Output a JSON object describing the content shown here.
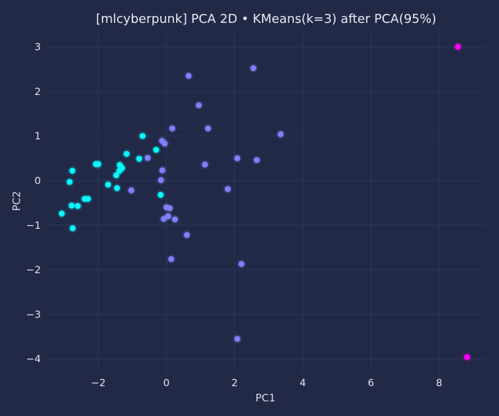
{
  "chart_data": {
    "type": "scatter",
    "title": "[mlcyberpunk] PCA 2D • KMeans(k=3) after PCA(95%)",
    "xlabel": "PC1",
    "ylabel": "PC2",
    "xlim": [
      -3.5,
      9.35
    ],
    "ylim": [
      -4.3,
      3.35
    ],
    "xticks": [
      -2,
      0,
      2,
      4,
      6,
      8
    ],
    "yticks": [
      -4,
      -3,
      -2,
      -1,
      0,
      1,
      2,
      3
    ],
    "xtick_labels": [
      "−2",
      "0",
      "2",
      "4",
      "6",
      "8"
    ],
    "ytick_labels": [
      "−4",
      "−3",
      "−2",
      "−1",
      "0",
      "1",
      "2",
      "3"
    ],
    "grid": true,
    "colors": {
      "background": "#212946",
      "grid": "#2c3762"
    },
    "series": [
      {
        "color": "#08F7FE",
        "points": [
          [
            -3.07,
            -0.74
          ],
          [
            -2.84,
            -0.03
          ],
          [
            -2.76,
            0.22
          ],
          [
            -2.78,
            -0.56
          ],
          [
            -2.75,
            -1.07
          ],
          [
            -2.6,
            -0.57
          ],
          [
            -2.4,
            -0.41
          ],
          [
            -2.3,
            -0.41
          ],
          [
            -2.07,
            0.37
          ],
          [
            -2.0,
            0.37
          ],
          [
            -1.71,
            -0.09
          ],
          [
            -1.45,
            -0.17
          ],
          [
            -1.47,
            0.12
          ],
          [
            -1.38,
            0.22
          ],
          [
            -1.37,
            0.35
          ],
          [
            -1.3,
            0.28
          ],
          [
            -1.17,
            0.6
          ],
          [
            -0.8,
            0.49
          ],
          [
            -0.7,
            1.0
          ],
          [
            -0.3,
            0.69
          ],
          [
            -0.17,
            -0.32
          ]
        ]
      },
      {
        "color": "#7F80F9",
        "points": [
          [
            0.65,
            2.35
          ],
          [
            2.55,
            2.52
          ],
          [
            0.95,
            1.69
          ],
          [
            0.17,
            1.17
          ],
          [
            1.22,
            1.17
          ],
          [
            3.35,
            1.04
          ],
          [
            -0.13,
            0.89
          ],
          [
            -0.05,
            0.83
          ],
          [
            -0.55,
            0.51
          ],
          [
            2.08,
            0.5
          ],
          [
            2.65,
            0.46
          ],
          [
            1.13,
            0.36
          ],
          [
            -0.12,
            0.23
          ],
          [
            -0.16,
            0.01
          ],
          [
            -1.03,
            -0.22
          ],
          [
            1.8,
            -0.19
          ],
          [
            0.0,
            -0.6
          ],
          [
            0.1,
            -0.62
          ],
          [
            0.05,
            -0.8
          ],
          [
            -0.08,
            -0.86
          ],
          [
            0.25,
            -0.87
          ],
          [
            0.6,
            -1.22
          ],
          [
            0.14,
            -1.76
          ],
          [
            2.2,
            -1.87
          ],
          [
            2.08,
            -3.55
          ]
        ]
      },
      {
        "color": "#FE00FE",
        "points": [
          [
            8.55,
            3.0
          ],
          [
            8.82,
            -3.96
          ]
        ]
      }
    ]
  }
}
